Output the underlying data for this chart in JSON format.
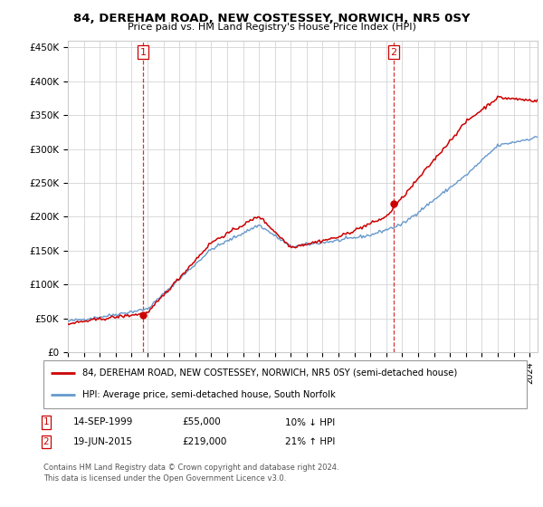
{
  "title": "84, DEREHAM ROAD, NEW COSTESSEY, NORWICH, NR5 0SY",
  "subtitle": "Price paid vs. HM Land Registry's House Price Index (HPI)",
  "ylabel_ticks": [
    "£0",
    "£50K",
    "£100K",
    "£150K",
    "£200K",
    "£250K",
    "£300K",
    "£350K",
    "£400K",
    "£450K"
  ],
  "ytick_vals": [
    0,
    50000,
    100000,
    150000,
    200000,
    250000,
    300000,
    350000,
    400000,
    450000
  ],
  "ylim": [
    0,
    460000
  ],
  "xlim_start": 1995.0,
  "xlim_end": 2024.5,
  "sale1_year": 1999.71,
  "sale1_price": 55000,
  "sale2_year": 2015.46,
  "sale2_price": 219000,
  "vline1_x": 1999.71,
  "vline2_x": 2015.46,
  "legend_line1": "84, DEREHAM ROAD, NEW COSTESSEY, NORWICH, NR5 0SY (semi-detached house)",
  "legend_line2": "HPI: Average price, semi-detached house, South Norfolk",
  "footer": "Contains HM Land Registry data © Crown copyright and database right 2024.\nThis data is licensed under the Open Government Licence v3.0.",
  "red_color": "#cc0000",
  "blue_color": "#6699cc",
  "background_color": "#ffffff",
  "grid_color": "#cccccc",
  "title_fontsize": 9.5,
  "subtitle_fontsize": 8.0
}
